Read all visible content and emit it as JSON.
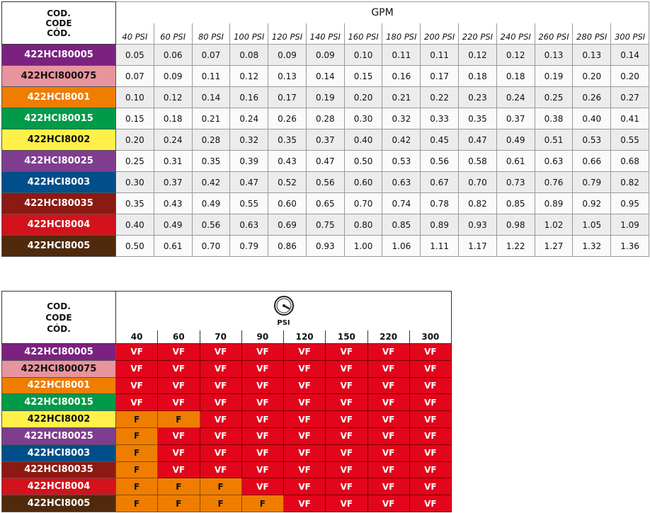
{
  "gpm_table": {
    "code_header": [
      "COD.",
      "CODE",
      "CÓD."
    ],
    "title": "GPM",
    "pressures": [
      "40 PSI",
      "60 PSI",
      "80 PSI",
      "100 PSI",
      "120 PSI",
      "140 PSI",
      "160 PSI",
      "180 PSI",
      "200 PSI",
      "220 PSI",
      "240 PSI",
      "260 PSI",
      "280 PSI",
      "300 PSI"
    ],
    "rows": [
      {
        "code": "422HCI80005",
        "color": "#7b2280",
        "values": [
          "0.05",
          "0.06",
          "0.07",
          "0.08",
          "0.09",
          "0.09",
          "0.10",
          "0.11",
          "0.11",
          "0.12",
          "0.12",
          "0.13",
          "0.13",
          "0.14"
        ]
      },
      {
        "code": "422HCI800075",
        "color": "#e8949d",
        "values": [
          "0.07",
          "0.09",
          "0.11",
          "0.12",
          "0.13",
          "0.14",
          "0.15",
          "0.16",
          "0.17",
          "0.18",
          "0.18",
          "0.19",
          "0.20",
          "0.20"
        ]
      },
      {
        "code": "422HCI8001",
        "color": "#ef7d00",
        "values": [
          "0.10",
          "0.12",
          "0.14",
          "0.16",
          "0.17",
          "0.19",
          "0.20",
          "0.21",
          "0.22",
          "0.23",
          "0.24",
          "0.25",
          "0.26",
          "0.27"
        ]
      },
      {
        "code": "422HCI80015",
        "color": "#009b48",
        "values": [
          "0.15",
          "0.18",
          "0.21",
          "0.24",
          "0.26",
          "0.28",
          "0.30",
          "0.32",
          "0.33",
          "0.35",
          "0.37",
          "0.38",
          "0.40",
          "0.41"
        ]
      },
      {
        "code": "422HCI8002",
        "color": "#fff14a",
        "values": [
          "0.20",
          "0.24",
          "0.28",
          "0.32",
          "0.35",
          "0.37",
          "0.40",
          "0.42",
          "0.45",
          "0.47",
          "0.49",
          "0.51",
          "0.53",
          "0.55"
        ]
      },
      {
        "code": "422HCI80025",
        "color": "#7f3d8f",
        "values": [
          "0.25",
          "0.31",
          "0.35",
          "0.39",
          "0.43",
          "0.47",
          "0.50",
          "0.53",
          "0.56",
          "0.58",
          "0.61",
          "0.63",
          "0.66",
          "0.68"
        ]
      },
      {
        "code": "422HCI8003",
        "color": "#004f8a",
        "values": [
          "0.30",
          "0.37",
          "0.42",
          "0.47",
          "0.52",
          "0.56",
          "0.60",
          "0.63",
          "0.67",
          "0.70",
          "0.73",
          "0.76",
          "0.79",
          "0.82"
        ]
      },
      {
        "code": "422HCI80035",
        "color": "#8b1a12",
        "values": [
          "0.35",
          "0.43",
          "0.49",
          "0.55",
          "0.60",
          "0.65",
          "0.70",
          "0.74",
          "0.78",
          "0.82",
          "0.85",
          "0.89",
          "0.92",
          "0.95"
        ]
      },
      {
        "code": "422HCI8004",
        "color": "#d3121b",
        "values": [
          "0.40",
          "0.49",
          "0.56",
          "0.63",
          "0.69",
          "0.75",
          "0.80",
          "0.85",
          "0.89",
          "0.93",
          "0.98",
          "1.02",
          "1.05",
          "1.09"
        ]
      },
      {
        "code": "422HCI8005",
        "color": "#4f2a0d",
        "values": [
          "0.50",
          "0.61",
          "0.70",
          "0.79",
          "0.86",
          "0.93",
          "1.00",
          "1.06",
          "1.11",
          "1.17",
          "1.22",
          "1.27",
          "1.32",
          "1.36"
        ]
      }
    ]
  },
  "droplet_table": {
    "code_header": [
      "COD.",
      "CODE",
      "CÓD."
    ],
    "gauge_icon": "pressure-gauge-icon",
    "gauge_label": "PSI",
    "pressures": [
      "40",
      "60",
      "70",
      "90",
      "120",
      "150",
      "220",
      "300"
    ],
    "colors": {
      "VF": "#e3051b",
      "F": "#ef7d00"
    },
    "rows": [
      {
        "code": "422HCI80005",
        "color": "#7b2280",
        "values": [
          "VF",
          "VF",
          "VF",
          "VF",
          "VF",
          "VF",
          "VF",
          "VF"
        ]
      },
      {
        "code": "422HCI800075",
        "color": "#e8949d",
        "values": [
          "VF",
          "VF",
          "VF",
          "VF",
          "VF",
          "VF",
          "VF",
          "VF"
        ]
      },
      {
        "code": "422HCI8001",
        "color": "#ef7d00",
        "values": [
          "VF",
          "VF",
          "VF",
          "VF",
          "VF",
          "VF",
          "VF",
          "VF"
        ]
      },
      {
        "code": "422HCI80015",
        "color": "#009b48",
        "values": [
          "VF",
          "VF",
          "VF",
          "VF",
          "VF",
          "VF",
          "VF",
          "VF"
        ]
      },
      {
        "code": "422HCI8002",
        "color": "#fff14a",
        "values": [
          "F",
          "F",
          "VF",
          "VF",
          "VF",
          "VF",
          "VF",
          "VF"
        ]
      },
      {
        "code": "422HCI80025",
        "color": "#7f3d8f",
        "values": [
          "F",
          "VF",
          "VF",
          "VF",
          "VF",
          "VF",
          "VF",
          "VF"
        ]
      },
      {
        "code": "422HCI8003",
        "color": "#004f8a",
        "values": [
          "F",
          "VF",
          "VF",
          "VF",
          "VF",
          "VF",
          "VF",
          "VF"
        ]
      },
      {
        "code": "422HCI80035",
        "color": "#8b1a12",
        "values": [
          "F",
          "VF",
          "VF",
          "VF",
          "VF",
          "VF",
          "VF",
          "VF"
        ]
      },
      {
        "code": "422HCI8004",
        "color": "#d3121b",
        "values": [
          "F",
          "F",
          "F",
          "VF",
          "VF",
          "VF",
          "VF",
          "VF"
        ]
      },
      {
        "code": "422HCI8005",
        "color": "#4f2a0d",
        "values": [
          "F",
          "F",
          "F",
          "F",
          "VF",
          "VF",
          "VF",
          "VF"
        ]
      }
    ]
  }
}
